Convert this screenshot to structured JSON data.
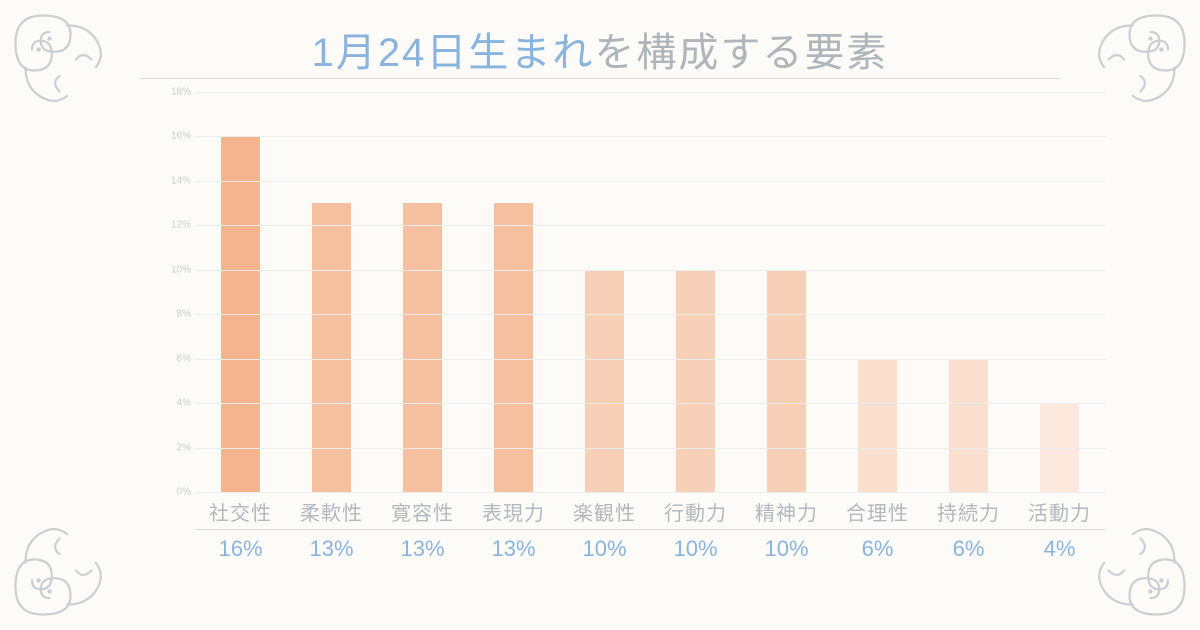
{
  "title": {
    "highlight": "1月24日生まれ",
    "rest": "を構成する要素",
    "highlight_color": "#89b4df",
    "rest_color": "#aeb5bb",
    "fontsize": 40
  },
  "chart": {
    "type": "bar",
    "ylim": [
      0,
      18
    ],
    "ytick_step": 2,
    "ytick_suffix": "%",
    "ytick_fontsize": 10,
    "ytick_color": "#c8cdd1",
    "grid_color": "#e9edee",
    "background_color": "#fdfbf8",
    "bar_width": 0.42,
    "xlabel_fontsize": 20,
    "xlabel_color": "#b1b8be",
    "pct_fontsize": 22,
    "pct_color": "#89b4df",
    "items": [
      {
        "label": "社交性",
        "value": 16,
        "pct_label": "16%",
        "color": "#f3b48e"
      },
      {
        "label": "柔軟性",
        "value": 13,
        "pct_label": "13%",
        "color": "#f5c0a0"
      },
      {
        "label": "寛容性",
        "value": 13,
        "pct_label": "13%",
        "color": "#f5c0a0"
      },
      {
        "label": "表現力",
        "value": 13,
        "pct_label": "13%",
        "color": "#f5c0a0"
      },
      {
        "label": "楽観性",
        "value": 10,
        "pct_label": "10%",
        "color": "#f8d0b8"
      },
      {
        "label": "行動力",
        "value": 10,
        "pct_label": "10%",
        "color": "#f8d0b8"
      },
      {
        "label": "精神力",
        "value": 10,
        "pct_label": "10%",
        "color": "#f8d0b8"
      },
      {
        "label": "合理性",
        "value": 6,
        "pct_label": "6%",
        "color": "#fadfce"
      },
      {
        "label": "持続力",
        "value": 6,
        "pct_label": "6%",
        "color": "#fadfce"
      },
      {
        "label": "活動力",
        "value": 4,
        "pct_label": "4%",
        "color": "#fce8dc"
      }
    ]
  },
  "ornament_color": "#bfc4c9"
}
